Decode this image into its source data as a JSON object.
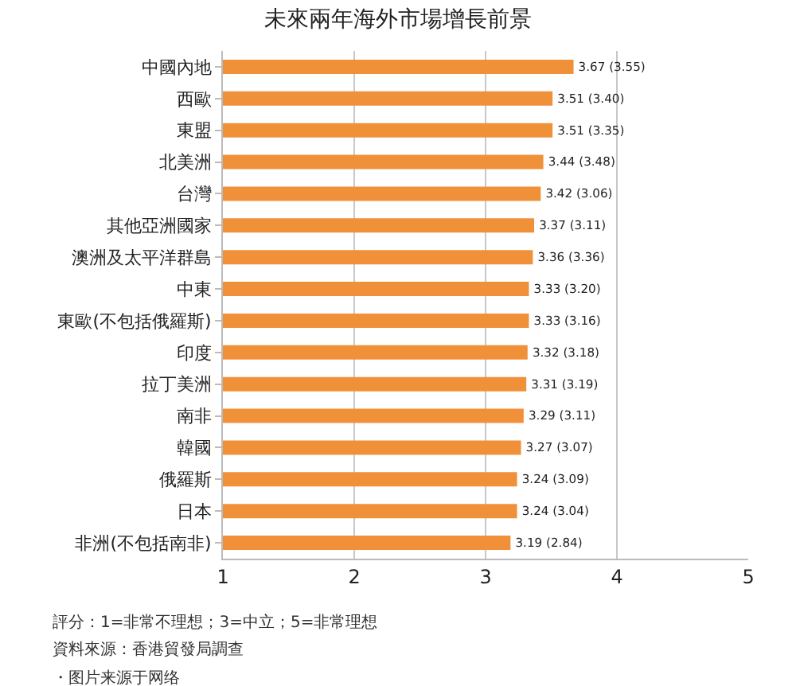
{
  "chart_data": {
    "type": "bar",
    "orientation": "horizontal",
    "title": "未來兩年海外市場增長前景",
    "categories": [
      "中國內地",
      "西歐",
      "東盟",
      "北美洲",
      "台灣",
      "其他亞洲國家",
      "澳洲及太平洋群島",
      "中東",
      "東歐(不包括俄羅斯)",
      "印度",
      "拉丁美洲",
      "南非",
      "韓國",
      "俄羅斯",
      "日本",
      "非洲(不包括南非)"
    ],
    "values": [
      3.67,
      3.51,
      3.51,
      3.44,
      3.42,
      3.37,
      3.36,
      3.33,
      3.33,
      3.32,
      3.31,
      3.29,
      3.27,
      3.24,
      3.24,
      3.19
    ],
    "value_labels": [
      "3.67 (3.55)",
      "3.51 (3.40)",
      "3.51 (3.35)",
      "3.44 (3.48)",
      "3.42 (3.06)",
      "3.37 (3.11)",
      "3.36 (3.36)",
      "3.33 (3.20)",
      "3.33 (3.16)",
      "3.32 (3.18)",
      "3.31 (3.19)",
      "3.29 (3.11)",
      "3.27 (3.07)",
      "3.24 (3.09)",
      "3.24 (3.04)",
      "3.19 (2.84)"
    ],
    "color": "#f0913a",
    "xlim": [
      1,
      5
    ],
    "xticks": [
      1,
      2,
      3,
      4,
      5
    ],
    "grid": "x",
    "annotations": [
      "評分：1=非常不理想；3=中立；5=非常理想",
      "資料來源：香港貿發局調查",
      "・图片来源于网络"
    ]
  }
}
